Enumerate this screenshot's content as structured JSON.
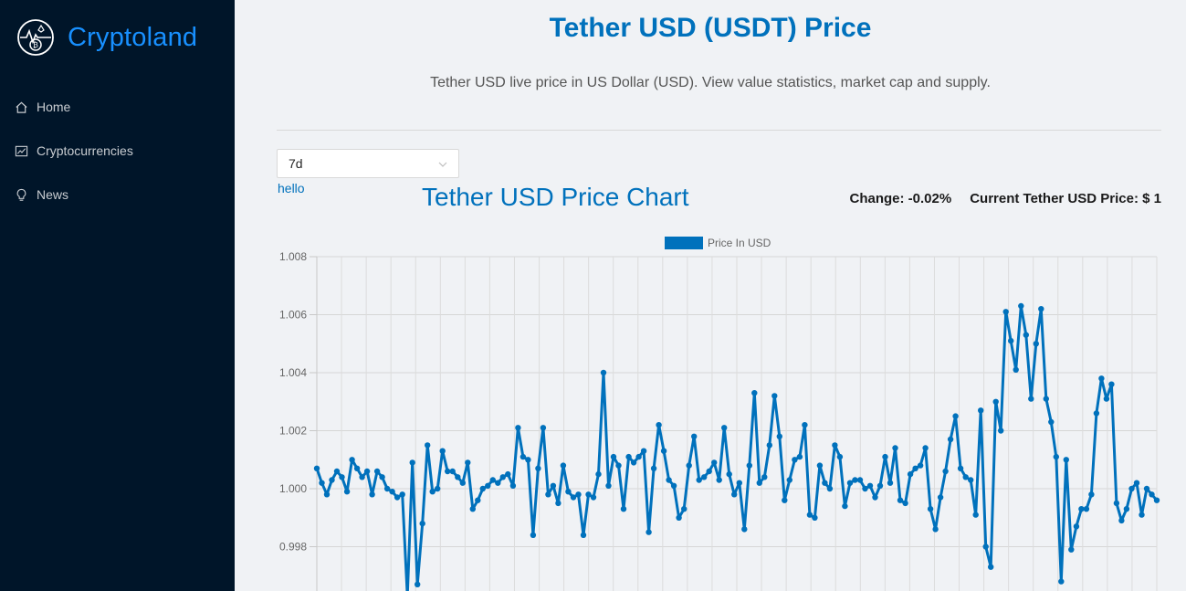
{
  "brand": {
    "name": "Cryptoland"
  },
  "menu": [
    {
      "label": "Home",
      "icon": "home-icon"
    },
    {
      "label": "Cryptocurrencies",
      "icon": "fund-icon"
    },
    {
      "label": "News",
      "icon": "bulb-icon"
    }
  ],
  "header": {
    "title": "Tether USD (USDT) Price",
    "subtitle": "Tether USD live price in US Dollar (USD). View value statistics, market cap and supply."
  },
  "controls": {
    "timeperiod": "7d",
    "link": "hello"
  },
  "chart_header": {
    "title": "Tether USD Price Chart",
    "change_label": "Change: ",
    "change_value": "-0.02%",
    "price_label": "Current Tether USD Price: ",
    "price_value": "$ 1"
  },
  "colors": {
    "accent": "#0071bc",
    "sidebar": "#001529",
    "brand": "#1890ff"
  },
  "chart_data": {
    "type": "line",
    "legend": "Price In USD",
    "legend_position": "top",
    "grid": true,
    "ylim": [
      0.996,
      1.008
    ],
    "yticks": [
      "1.008",
      "1.006",
      "1.004",
      "1.002",
      "1.000",
      "0.998"
    ],
    "series": [
      {
        "name": "Price In USD",
        "color": "#0071bc",
        "values": [
          1.0007,
          1.0002,
          0.9998,
          1.0003,
          1.0006,
          1.0004,
          0.9999,
          1.001,
          1.0007,
          1.0004,
          1.0006,
          0.9998,
          1.0006,
          1.0004,
          1.0,
          0.9999,
          0.9997,
          0.9998,
          0.9963,
          1.0009,
          0.9967,
          0.9988,
          1.0015,
          0.9999,
          1.0,
          1.0013,
          1.0006,
          1.0006,
          1.0004,
          1.0002,
          1.0009,
          0.9993,
          0.9996,
          1.0,
          1.0001,
          1.0003,
          1.0002,
          1.0004,
          1.0005,
          1.0001,
          1.0021,
          1.0011,
          1.001,
          0.9984,
          1.0007,
          1.0021,
          0.9998,
          1.0001,
          0.9995,
          1.0008,
          0.9999,
          0.9997,
          0.9998,
          0.9984,
          0.9998,
          0.9997,
          1.0005,
          1.004,
          1.0001,
          1.0011,
          1.0008,
          0.9993,
          1.0011,
          1.0009,
          1.0011,
          1.0013,
          0.9985,
          1.0007,
          1.0022,
          1.0013,
          1.0003,
          1.0001,
          0.999,
          0.9993,
          1.0008,
          1.0018,
          1.0003,
          1.0004,
          1.0006,
          1.0009,
          1.0003,
          1.0021,
          1.0005,
          0.9998,
          1.0002,
          0.9986,
          1.0008,
          1.0033,
          1.0002,
          1.0004,
          1.0015,
          1.0032,
          1.0018,
          0.9996,
          1.0003,
          1.001,
          1.0011,
          1.0022,
          0.9991,
          0.999,
          1.0008,
          1.0002,
          1.0,
          1.0015,
          1.0011,
          0.9994,
          1.0002,
          1.0003,
          1.0003,
          1.0,
          1.0001,
          0.9997,
          1.0001,
          1.0011,
          1.0002,
          1.0014,
          0.9996,
          0.9995,
          1.0005,
          1.0007,
          1.0008,
          1.0014,
          0.9993,
          0.9986,
          0.9997,
          1.0006,
          1.0017,
          1.0025,
          1.0007,
          1.0004,
          1.0003,
          0.9991,
          1.0027,
          0.998,
          0.9973,
          1.003,
          1.002,
          1.0061,
          1.0051,
          1.0041,
          1.0063,
          1.0053,
          1.0031,
          1.005,
          1.0062,
          1.0031,
          1.0023,
          1.0011,
          0.9968,
          1.001,
          0.9979,
          0.9987,
          0.9993,
          0.9993,
          0.9998,
          1.0026,
          1.0038,
          1.0031,
          1.0036,
          0.9995,
          0.9989,
          0.9993,
          1.0,
          1.0002,
          0.9991,
          1.0,
          0.9998,
          0.9996
        ]
      }
    ]
  }
}
